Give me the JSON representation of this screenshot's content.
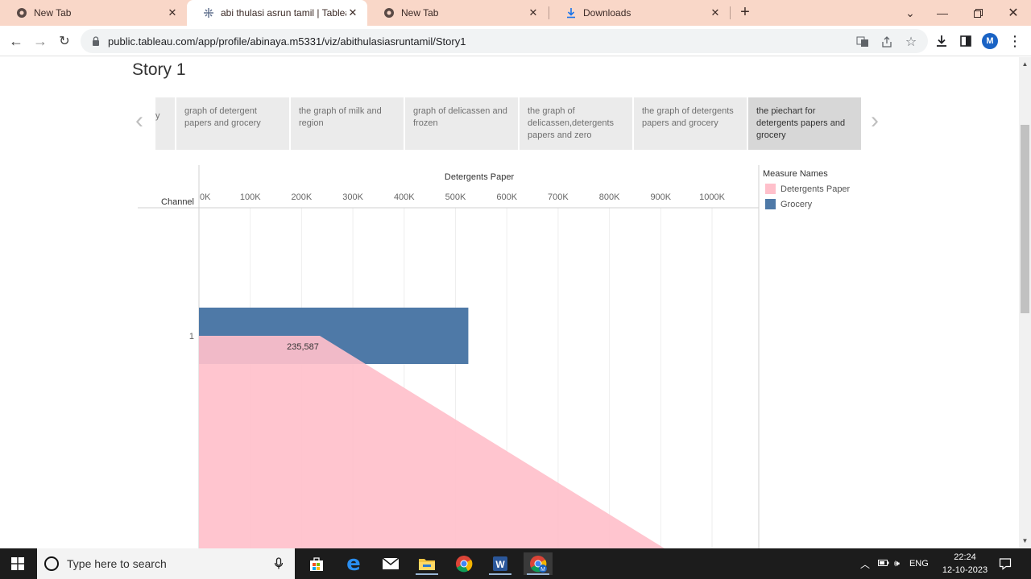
{
  "browser": {
    "tabs": [
      {
        "title": "New Tab",
        "active": false
      },
      {
        "title": "abi thulasi asrun tamil | Tableau",
        "active": true
      },
      {
        "title": "New Tab",
        "active": false
      },
      {
        "title": "Downloads",
        "active": false
      }
    ],
    "url": "public.tableau.com/app/profile/abinaya.m5331/viz/abithulasiasruntamil/Story1",
    "avatar_letter": "M"
  },
  "story": {
    "title": "Story 1",
    "points": [
      {
        "label": "y",
        "selected": false
      },
      {
        "label": "graph of detergent papers and grocery",
        "selected": false
      },
      {
        "label": "the graph of milk and region",
        "selected": false
      },
      {
        "label": "graph of delicassen and frozen",
        "selected": false
      },
      {
        "label": "the graph of delicassen,detergents papers and zero",
        "selected": false
      },
      {
        "label": "the graph of detergents papers and grocery",
        "selected": false
      },
      {
        "label": "the piechart for detergents papers and grocery",
        "selected": true
      }
    ]
  },
  "chart_data": {
    "type": "bar",
    "title": "",
    "xlabel": "Detergents Paper",
    "ylabel": "Channel",
    "x_ticks": [
      "0K",
      "100K",
      "200K",
      "300K",
      "400K",
      "500K",
      "600K",
      "700K",
      "800K",
      "900K",
      "1000K"
    ],
    "xlim": [
      0,
      1080000
    ],
    "categories": [
      "1"
    ],
    "series": [
      {
        "name": "Grocery",
        "values": [
          525000
        ],
        "color": "#4e79a7"
      },
      {
        "name": "Detergents Paper",
        "values": [
          235587
        ],
        "color": "#ffc0cb"
      }
    ],
    "data_label": "235,587",
    "legend": {
      "title": "Measure Names",
      "placement": "right"
    }
  },
  "taskbar": {
    "search_placeholder": "Type here to search",
    "lang": "ENG",
    "time": "22:24",
    "date": "12-10-2023"
  }
}
